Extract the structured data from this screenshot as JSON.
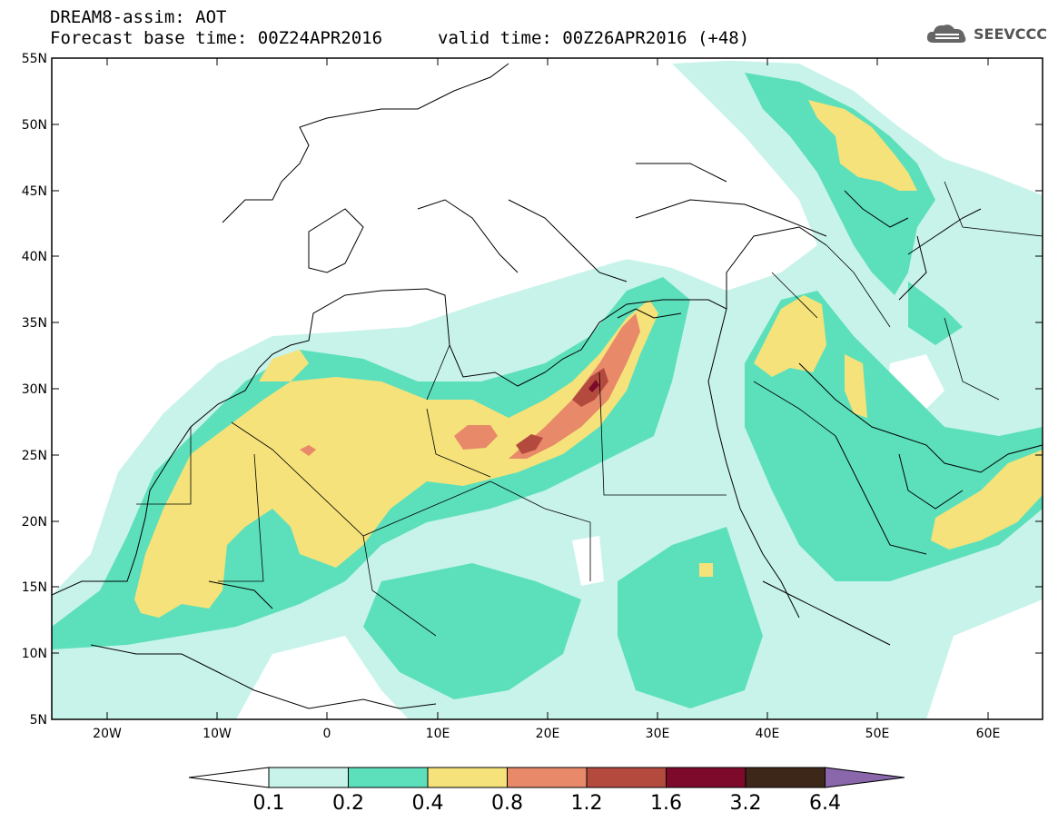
{
  "header": {
    "model_line": "DREAM8-assim: AOT",
    "base_line": "Forecast base time: 00Z24APR2016",
    "valid_line": "valid time: 00Z26APR2016 (+48)",
    "logo_text": "SEEVCCC"
  },
  "map": {
    "lon_range": [
      -25,
      65
    ],
    "lat_range": [
      5,
      55
    ],
    "y_ticks": [
      "55N",
      "50N",
      "45N",
      "40N",
      "35N",
      "30N",
      "25N",
      "20N",
      "15N",
      "10N",
      "5N"
    ],
    "x_ticks": [
      "20W",
      "10W",
      "0",
      "10E",
      "20E",
      "30E",
      "40E",
      "50E",
      "60E"
    ]
  },
  "colorbar": {
    "labels": [
      "0.1",
      "0.2",
      "0.4",
      "0.8",
      "1.2",
      "1.6",
      "3.2",
      "6.4"
    ],
    "colors": [
      "#ffffff",
      "#c8f3ea",
      "#5ce0bb",
      "#f5e27a",
      "#e8896a",
      "#b44a3e",
      "#7d0a2a",
      "#3d2719",
      "#8a66aa"
    ]
  }
}
